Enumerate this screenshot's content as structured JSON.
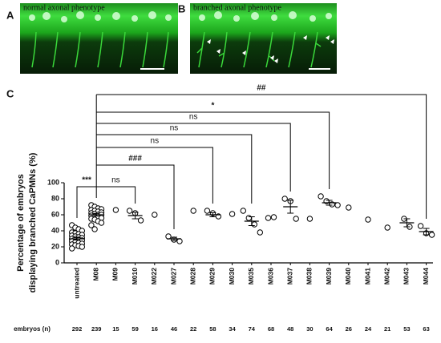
{
  "panel_labels": [
    "A",
    "B",
    "C"
  ],
  "images": [
    {
      "caption": "normal axonal phenotype"
    },
    {
      "caption": "branched axonal phenotype"
    }
  ],
  "chart_data": {
    "type": "dotplot",
    "ylabel": [
      "Percentage of embryos",
      "displaying branched CaPMNs (%)"
    ],
    "categories": [
      "untreated",
      "M08",
      "M09",
      "M010",
      "M022",
      "M027",
      "M028",
      "M029",
      "M030",
      "M035",
      "M036",
      "M037",
      "M038",
      "M039",
      "M040",
      "M041",
      "M042",
      "M043",
      "M044"
    ],
    "points": [
      [
        47,
        44,
        42,
        40,
        38,
        37,
        36,
        35,
        34,
        33,
        32,
        31,
        30,
        30,
        29,
        28,
        27,
        26,
        25,
        24,
        23,
        22,
        21,
        20,
        18
      ],
      [
        72,
        70,
        68,
        67,
        66,
        65,
        64,
        63,
        62,
        61,
        60,
        60,
        59,
        58,
        57,
        56,
        55,
        54,
        52,
        50,
        47,
        42
      ],
      [
        66
      ],
      [
        65,
        62,
        53
      ],
      [
        60
      ],
      [
        33,
        29,
        27
      ],
      [
        65
      ],
      [
        65,
        62,
        58
      ],
      [
        61
      ],
      [
        65,
        56,
        48,
        38
      ],
      [
        56,
        57
      ],
      [
        80,
        77,
        55
      ],
      [
        55
      ],
      [
        83,
        77,
        73,
        72
      ],
      [
        69
      ],
      [
        54
      ],
      [
        44
      ],
      [
        55,
        45
      ],
      [
        46,
        37,
        35
      ]
    ],
    "means": [
      30,
      60,
      null,
      59,
      null,
      30,
      null,
      60,
      null,
      52,
      null,
      70,
      null,
      75,
      null,
      null,
      null,
      50,
      39
    ],
    "errors": [
      1.5,
      1.6,
      null,
      4,
      null,
      2,
      null,
      2.5,
      null,
      5.5,
      null,
      8,
      null,
      3,
      null,
      null,
      null,
      5,
      4
    ],
    "marker_color": "#ffffff",
    "marker_edge_color": "#000000",
    "ylim": [
      0,
      100
    ],
    "yticks": [
      0,
      20,
      40,
      60,
      80,
      100
    ],
    "reference": "M08",
    "comparisons": [
      {
        "target": "untreated",
        "label": "***"
      },
      {
        "target": "M010",
        "label": "ns"
      },
      {
        "target": "M027",
        "label": "###"
      },
      {
        "target": "M029",
        "label": "ns"
      },
      {
        "target": "M035",
        "label": "ns"
      },
      {
        "target": "M037",
        "label": "ns"
      },
      {
        "target": "M039",
        "label": "*"
      },
      {
        "target": "M044",
        "label": "##"
      }
    ],
    "n_label": "embryos (n)",
    "n_values": [
      292,
      239,
      15,
      59,
      16,
      46,
      22,
      58,
      34,
      74,
      68,
      48,
      30,
      64,
      26,
      24,
      21,
      53,
      63
    ]
  }
}
